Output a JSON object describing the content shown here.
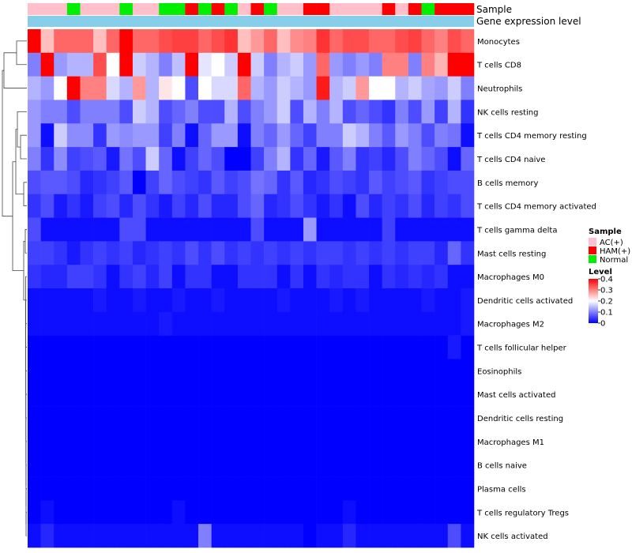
{
  "chart_data": {
    "type": "heatmap",
    "title": "",
    "annotation_tracks": [
      "Sample",
      "Gene expression level"
    ],
    "rows": [
      "Monocytes",
      "T cells CD8",
      "Neutrophils",
      "NK cells resting",
      "T cells CD4 memory resting",
      "T cells CD4 naive",
      "B cells memory",
      "T cells CD4 memory activated",
      "T cells gamma delta",
      "Mast cells resting",
      "Macrophages M0",
      "Dendritic cells activated",
      "Macrophages M2",
      "T cells follicular helper",
      "Eosinophils",
      "Mast cells activated",
      "Dendritic cells resting",
      "Macrophages M1",
      "B cells naive",
      "Plasma cells",
      "T cells regulatory  Tregs",
      "NK cells activated"
    ],
    "sample_groups": [
      "AC(+)",
      "AC(+)",
      "AC(+)",
      "Normal",
      "AC(+)",
      "AC(+)",
      "AC(+)",
      "Normal",
      "AC(+)",
      "AC(+)",
      "Normal",
      "Normal",
      "HAM(+)",
      "Normal",
      "HAM(+)",
      "Normal",
      "AC(+)",
      "HAM(+)",
      "Normal",
      "AC(+)",
      "AC(+)",
      "HAM(+)",
      "HAM(+)",
      "AC(+)",
      "AC(+)",
      "AC(+)",
      "AC(+)",
      "HAM(+)",
      "AC(+)",
      "HAM(+)",
      "Normal",
      "HAM(+)",
      "HAM(+)",
      "HAM(+)"
    ],
    "values": [
      [
        0.4,
        0.25,
        0.32,
        0.32,
        0.32,
        0.25,
        0.32,
        0.4,
        0.32,
        0.32,
        0.34,
        0.35,
        0.35,
        0.32,
        0.34,
        0.36,
        0.25,
        0.28,
        0.32,
        0.25,
        0.29,
        0.3,
        0.36,
        0.32,
        0.34,
        0.34,
        0.32,
        0.32,
        0.34,
        0.35,
        0.32,
        0.3,
        0.34,
        0.32
      ],
      [
        0.1,
        0.4,
        0.12,
        0.14,
        0.14,
        0.34,
        0.2,
        0.4,
        0.16,
        0.14,
        0.1,
        0.15,
        0.4,
        0.18,
        0.2,
        0.16,
        0.4,
        0.16,
        0.1,
        0.14,
        0.16,
        0.12,
        0.32,
        0.12,
        0.1,
        0.12,
        0.1,
        0.3,
        0.3,
        0.1,
        0.3,
        0.26,
        0.4,
        0.4
      ],
      [
        0.14,
        0.12,
        0.2,
        0.4,
        0.3,
        0.3,
        0.17,
        0.14,
        0.28,
        0.14,
        0.22,
        0.2,
        0.06,
        0.2,
        0.17,
        0.17,
        0.32,
        0.14,
        0.12,
        0.16,
        0.14,
        0.12,
        0.38,
        0.14,
        0.16,
        0.28,
        0.2,
        0.2,
        0.14,
        0.16,
        0.13,
        0.12,
        0.16,
        0.1
      ],
      [
        0.12,
        0.1,
        0.1,
        0.06,
        0.1,
        0.1,
        0.1,
        0.06,
        0.16,
        0.14,
        0.06,
        0.08,
        0.1,
        0.06,
        0.06,
        0.14,
        0.06,
        0.1,
        0.12,
        0.16,
        0.06,
        0.14,
        0.1,
        0.14,
        0.06,
        0.08,
        0.06,
        0.04,
        0.1,
        0.06,
        0.12,
        0.05,
        0.14,
        0.04
      ],
      [
        0.12,
        0.01,
        0.16,
        0.11,
        0.11,
        0.04,
        0.12,
        0.11,
        0.12,
        0.12,
        0.05,
        0.1,
        0.01,
        0.08,
        0.12,
        0.12,
        0.01,
        0.1,
        0.08,
        0.12,
        0.08,
        0.05,
        0.1,
        0.1,
        0.16,
        0.14,
        0.1,
        0.07,
        0.12,
        0.1,
        0.06,
        0.1,
        0.09,
        0.01
      ],
      [
        0.1,
        0.04,
        0.11,
        0.05,
        0.06,
        0.07,
        0.02,
        0.09,
        0.06,
        0.16,
        0.08,
        0.01,
        0.05,
        0.08,
        0.06,
        0.0,
        0.0,
        0.05,
        0.1,
        0.14,
        0.04,
        0.08,
        0.02,
        0.07,
        0.1,
        0.04,
        0.05,
        0.03,
        0.06,
        0.1,
        0.08,
        0.06,
        0.01,
        0.08
      ],
      [
        0.06,
        0.07,
        0.07,
        0.06,
        0.03,
        0.04,
        0.05,
        0.07,
        0.0,
        0.05,
        0.08,
        0.06,
        0.05,
        0.04,
        0.07,
        0.05,
        0.06,
        0.09,
        0.08,
        0.04,
        0.07,
        0.03,
        0.04,
        0.06,
        0.05,
        0.04,
        0.07,
        0.05,
        0.06,
        0.07,
        0.04,
        0.05,
        0.06,
        0.06
      ],
      [
        0.04,
        0.06,
        0.02,
        0.04,
        0.02,
        0.05,
        0.06,
        0.03,
        0.06,
        0.04,
        0.02,
        0.05,
        0.03,
        0.06,
        0.03,
        0.03,
        0.06,
        0.08,
        0.03,
        0.04,
        0.06,
        0.04,
        0.02,
        0.04,
        0.01,
        0.06,
        0.03,
        0.05,
        0.04,
        0.06,
        0.03,
        0.05,
        0.04,
        0.06
      ],
      [
        0.06,
        0.01,
        0.01,
        0.01,
        0.01,
        0.01,
        0.01,
        0.06,
        0.06,
        0.01,
        0.01,
        0.01,
        0.01,
        0.01,
        0.01,
        0.01,
        0.01,
        0.06,
        0.01,
        0.01,
        0.01,
        0.12,
        0.01,
        0.01,
        0.01,
        0.01,
        0.01,
        0.05,
        0.01,
        0.01,
        0.01,
        0.01,
        0.01,
        0.01
      ],
      [
        0.05,
        0.05,
        0.04,
        0.02,
        0.04,
        0.05,
        0.04,
        0.05,
        0.03,
        0.04,
        0.05,
        0.04,
        0.06,
        0.04,
        0.06,
        0.04,
        0.05,
        0.04,
        0.05,
        0.04,
        0.05,
        0.04,
        0.05,
        0.05,
        0.04,
        0.05,
        0.04,
        0.05,
        0.04,
        0.05,
        0.05,
        0.03,
        0.08,
        0.04
      ],
      [
        0.04,
        0.03,
        0.03,
        0.05,
        0.05,
        0.04,
        0.01,
        0.04,
        0.05,
        0.03,
        0.05,
        0.01,
        0.04,
        0.04,
        0.01,
        0.01,
        0.04,
        0.04,
        0.04,
        0.01,
        0.04,
        0.01,
        0.04,
        0.03,
        0.04,
        0.04,
        0.01,
        0.04,
        0.03,
        0.04,
        0.03,
        0.04,
        0.01,
        0.01
      ],
      [
        0.01,
        0.01,
        0.01,
        0.01,
        0.01,
        0.02,
        0.01,
        0.01,
        0.02,
        0.01,
        0.01,
        0.02,
        0.01,
        0.01,
        0.02,
        0.01,
        0.01,
        0.01,
        0.01,
        0.02,
        0.01,
        0.01,
        0.01,
        0.02,
        0.01,
        0.02,
        0.01,
        0.01,
        0.01,
        0.01,
        0.02,
        0.01,
        0.01,
        0.02
      ],
      [
        0.01,
        0.01,
        0.01,
        0.01,
        0.01,
        0.01,
        0.01,
        0.01,
        0.01,
        0.01,
        0.02,
        0.01,
        0.01,
        0.01,
        0.01,
        0.01,
        0.01,
        0.01,
        0.01,
        0.01,
        0.01,
        0.01,
        0.01,
        0.01,
        0.01,
        0.01,
        0.01,
        0.01,
        0.01,
        0.01,
        0.01,
        0.01,
        0.01,
        0.02
      ],
      [
        0.0,
        0.0,
        0.0,
        0.0,
        0.0,
        0.0,
        0.0,
        0.0,
        0.0,
        0.0,
        0.0,
        0.0,
        0.0,
        0.0,
        0.0,
        0.0,
        0.0,
        0.0,
        0.0,
        0.0,
        0.0,
        0.0,
        0.0,
        0.0,
        0.0,
        0.0,
        0.0,
        0.0,
        0.0,
        0.0,
        0.0,
        0.0,
        0.02,
        0.0
      ],
      [
        0.0,
        0.0,
        0.0,
        0.0,
        0.0,
        0.0,
        0.0,
        0.0,
        0.0,
        0.0,
        0.0,
        0.0,
        0.0,
        0.0,
        0.0,
        0.0,
        0.0,
        0.0,
        0.0,
        0.0,
        0.0,
        0.0,
        0.0,
        0.0,
        0.0,
        0.0,
        0.0,
        0.0,
        0.0,
        0.0,
        0.0,
        0.0,
        0.0,
        0.0
      ],
      [
        0.0,
        0.0,
        0.0,
        0.0,
        0.0,
        0.0,
        0.0,
        0.0,
        0.0,
        0.0,
        0.0,
        0.0,
        0.0,
        0.0,
        0.0,
        0.0,
        0.0,
        0.0,
        0.0,
        0.0,
        0.0,
        0.0,
        0.0,
        0.0,
        0.0,
        0.0,
        0.0,
        0.0,
        0.0,
        0.0,
        0.0,
        0.0,
        0.0,
        0.0
      ],
      [
        0.0,
        0.0,
        0.0,
        0.0,
        0.0,
        0.0,
        0.0,
        0.0,
        0.0,
        0.0,
        0.0,
        0.0,
        0.0,
        0.0,
        0.0,
        0.0,
        0.0,
        0.0,
        0.0,
        0.0,
        0.0,
        0.0,
        0.0,
        0.0,
        0.0,
        0.0,
        0.0,
        0.0,
        0.0,
        0.0,
        0.0,
        0.0,
        0.0,
        0.0
      ],
      [
        0.0,
        0.0,
        0.0,
        0.0,
        0.0,
        0.0,
        0.0,
        0.0,
        0.0,
        0.0,
        0.0,
        0.0,
        0.0,
        0.0,
        0.0,
        0.0,
        0.0,
        0.0,
        0.0,
        0.0,
        0.0,
        0.0,
        0.0,
        0.0,
        0.0,
        0.0,
        0.0,
        0.0,
        0.0,
        0.0,
        0.0,
        0.0,
        0.0,
        0.0
      ],
      [
        0.0,
        0.0,
        0.0,
        0.0,
        0.0,
        0.0,
        0.0,
        0.0,
        0.0,
        0.0,
        0.0,
        0.0,
        0.0,
        0.0,
        0.0,
        0.0,
        0.0,
        0.0,
        0.0,
        0.0,
        0.0,
        0.0,
        0.0,
        0.0,
        0.0,
        0.0,
        0.0,
        0.0,
        0.0,
        0.0,
        0.0,
        0.0,
        0.0,
        0.0
      ],
      [
        0.0,
        0.0,
        0.0,
        0.0,
        0.0,
        0.0,
        0.0,
        0.0,
        0.0,
        0.0,
        0.0,
        0.0,
        0.0,
        0.0,
        0.0,
        0.0,
        0.0,
        0.0,
        0.0,
        0.0,
        0.0,
        0.0,
        0.0,
        0.0,
        0.0,
        0.0,
        0.0,
        0.0,
        0.0,
        0.0,
        0.0,
        0.0,
        0.0,
        0.0
      ],
      [
        0.0,
        0.01,
        0.0,
        0.0,
        0.0,
        0.0,
        0.0,
        0.0,
        0.0,
        0.0,
        0.0,
        0.01,
        0.0,
        0.0,
        0.0,
        0.0,
        0.0,
        0.0,
        0.0,
        0.0,
        0.0,
        0.0,
        0.0,
        0.0,
        0.01,
        0.0,
        0.0,
        0.0,
        0.0,
        0.0,
        0.0,
        0.0,
        0.0,
        0.0
      ],
      [
        0.01,
        0.03,
        0.01,
        0.01,
        0.01,
        0.01,
        0.01,
        0.01,
        0.01,
        0.01,
        0.01,
        0.01,
        0.01,
        0.1,
        0.01,
        0.01,
        0.01,
        0.01,
        0.01,
        0.01,
        0.01,
        0.0,
        0.01,
        0.01,
        0.03,
        0.01,
        0.01,
        0.01,
        0.01,
        0.01,
        0.01,
        0.01,
        0.06,
        0.01
      ]
    ],
    "legend": {
      "sample_title": "Sample",
      "groups": [
        {
          "name": "AC(+)",
          "color": "#FFC0CB"
        },
        {
          "name": "HAM(+)",
          "color": "#FF0000"
        },
        {
          "name": "Normal",
          "color": "#00EE00"
        }
      ],
      "level_title": "Level",
      "level_ticks": [
        "0.4",
        "0.3",
        "0.2",
        "0.1",
        "0"
      ],
      "level_range": [
        0,
        0.4
      ],
      "level_colors": [
        "#0000FF",
        "#FFFFFF",
        "#FF0000"
      ]
    },
    "expression_track_color": "#87CEEB"
  }
}
